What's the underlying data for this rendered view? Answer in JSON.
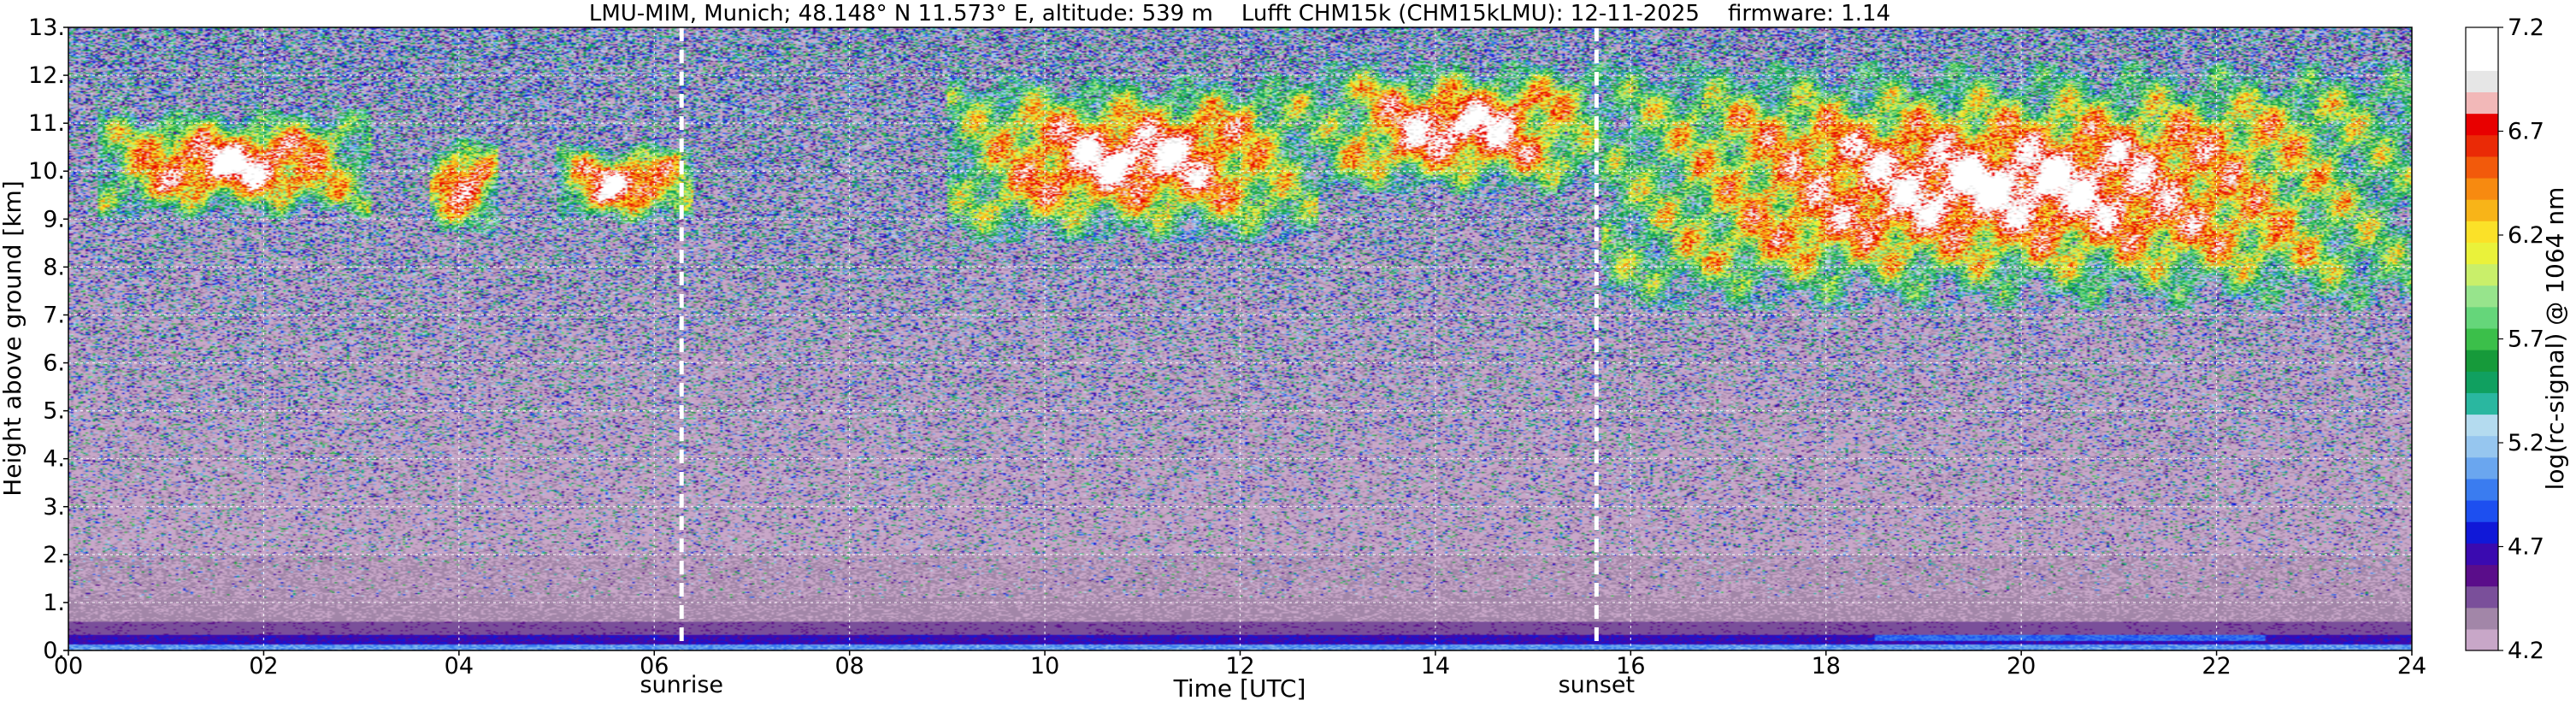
{
  "chart_data": {
    "type": "heatmap",
    "title": "LMU-MIM, Munich; 48.148° N 11.573° E, altitude: 539 m    Lufft CHM15k (CHM15kLMU): 12-11-2025    firmware: 1.14",
    "xlabel": "Time [UTC]",
    "ylabel": "Height above ground [km]",
    "xlim": [
      0,
      24
    ],
    "ylim": [
      0,
      13
    ],
    "x_ticks": [
      0,
      2,
      4,
      6,
      8,
      10,
      12,
      14,
      16,
      18,
      20,
      22,
      24
    ],
    "x_tick_labels": [
      "00",
      "02",
      "04",
      "06",
      "08",
      "10",
      "12",
      "14",
      "16",
      "18",
      "20",
      "22",
      "24"
    ],
    "y_ticks": [
      0,
      1,
      2,
      3,
      4,
      5,
      6,
      7,
      8,
      9,
      10,
      11,
      12,
      13
    ],
    "y_tick_labels": [
      "0.",
      "1.",
      "2.",
      "3.",
      "4.",
      "5.",
      "6.",
      "7.",
      "8.",
      "9.",
      "10.",
      "11.",
      "12.",
      "13."
    ],
    "grid": true,
    "colorbar": {
      "label": "log(rc-signal) @ 1064 nm",
      "range": [
        4.2,
        7.2
      ],
      "ticks": [
        4.2,
        4.7,
        5.2,
        5.7,
        6.2,
        6.7,
        7.2
      ],
      "tick_labels": [
        "4.2",
        "4.7",
        "5.2",
        "5.7",
        "6.2",
        "6.7",
        "7.2"
      ],
      "colors": [
        "#c8a7c8",
        "#a286a8",
        "#7a4f9a",
        "#5a0d8a",
        "#3a0ab0",
        "#1018d8",
        "#1d4ff0",
        "#3a7cf0",
        "#6aa6ef",
        "#96c6ef",
        "#b4dbef",
        "#2ab7a0",
        "#10a060",
        "#169a3a",
        "#3bbf4a",
        "#65d67a",
        "#97e48c",
        "#c9ef6a",
        "#eaf23a",
        "#fbe128",
        "#f8b418",
        "#f78a10",
        "#f25a0b",
        "#ea2a06",
        "#e80000",
        "#f2b8b8",
        "#e6e6e6",
        "#ffffff",
        "#ffffff"
      ]
    },
    "annotations": [
      {
        "text": "sunrise",
        "x": 6.28
      },
      {
        "text": "sunset",
        "x": 15.65
      }
    ],
    "signal_description": [
      {
        "feature": "boundary layer",
        "height_km": [
          0.0,
          1.1
        ]
      },
      {
        "feature": "cirrus",
        "time_h": [
          0.3,
          3.1
        ],
        "height_km": [
          9.0,
          11.3
        ]
      },
      {
        "feature": "cirrus",
        "time_h": [
          3.7,
          4.4
        ],
        "height_km": [
          8.7,
          10.7
        ]
      },
      {
        "feature": "cirrus",
        "time_h": [
          5.0,
          6.4
        ],
        "height_km": [
          8.9,
          10.6
        ]
      },
      {
        "feature": "cirrus",
        "time_h": [
          9.0,
          12.8
        ],
        "height_km": [
          8.5,
          12.0
        ]
      },
      {
        "feature": "cirrus",
        "time_h": [
          12.8,
          15.7
        ],
        "height_km": [
          9.5,
          12.3
        ]
      },
      {
        "feature": "cirrus",
        "time_h": [
          15.7,
          24.0
        ],
        "height_km": [
          7.1,
          12.3
        ]
      }
    ]
  }
}
